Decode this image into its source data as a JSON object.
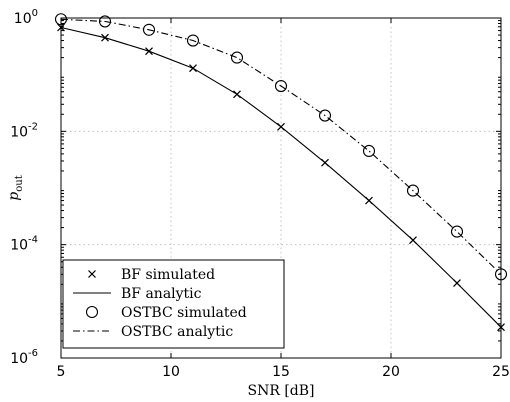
{
  "chart_data": {
    "type": "line",
    "xlabel": "SNR [dB]",
    "ylabel": "p",
    "ylabel_subscript": "out",
    "xlim": [
      5,
      25
    ],
    "ylim": [
      1e-06,
      1
    ],
    "y_scale": "log",
    "grid": true,
    "legend_position": "bottom-left",
    "x_ticks": [
      5,
      10,
      15,
      20,
      25
    ],
    "x_tick_labels": [
      "5",
      "10",
      "15",
      "20",
      "25"
    ],
    "y_ticks": [
      {
        "value": 1,
        "base": "10",
        "exp": "0"
      },
      {
        "value": 0.01,
        "base": "10",
        "exp": "-2"
      },
      {
        "value": 0.0001,
        "base": "10",
        "exp": "-4"
      },
      {
        "value": 1e-06,
        "base": "10",
        "exp": "-6"
      }
    ],
    "series": [
      {
        "name": "BF simulated",
        "style": "markers",
        "marker": "x",
        "x": [
          5,
          7,
          9,
          11,
          13,
          15,
          17,
          19,
          21,
          23,
          25
        ],
        "y": [
          0.68,
          0.45,
          0.26,
          0.13,
          0.045,
          0.012,
          0.0028,
          0.0006,
          0.00012,
          2.1e-05,
          3.5e-06
        ]
      },
      {
        "name": "BF analytic",
        "style": "solid",
        "x": [
          5,
          7,
          9,
          11,
          13,
          15,
          17,
          19,
          21,
          23,
          25
        ],
        "y": [
          0.68,
          0.45,
          0.26,
          0.13,
          0.045,
          0.012,
          0.0028,
          0.0006,
          0.00012,
          2.1e-05,
          3.5e-06
        ]
      },
      {
        "name": "OSTBC simulated",
        "style": "markers",
        "marker": "o",
        "x": [
          5,
          7,
          9,
          11,
          13,
          15,
          17,
          19,
          21,
          23,
          25
        ],
        "y": [
          0.95,
          0.87,
          0.62,
          0.4,
          0.2,
          0.063,
          0.019,
          0.0045,
          0.0009,
          0.00017,
          3e-05
        ]
      },
      {
        "name": "OSTBC analytic",
        "style": "dashdot",
        "x": [
          5,
          7,
          9,
          11,
          13,
          15,
          17,
          19,
          21,
          23,
          25
        ],
        "y": [
          0.95,
          0.87,
          0.62,
          0.4,
          0.2,
          0.063,
          0.019,
          0.0045,
          0.0009,
          0.00017,
          3e-05
        ]
      }
    ]
  }
}
